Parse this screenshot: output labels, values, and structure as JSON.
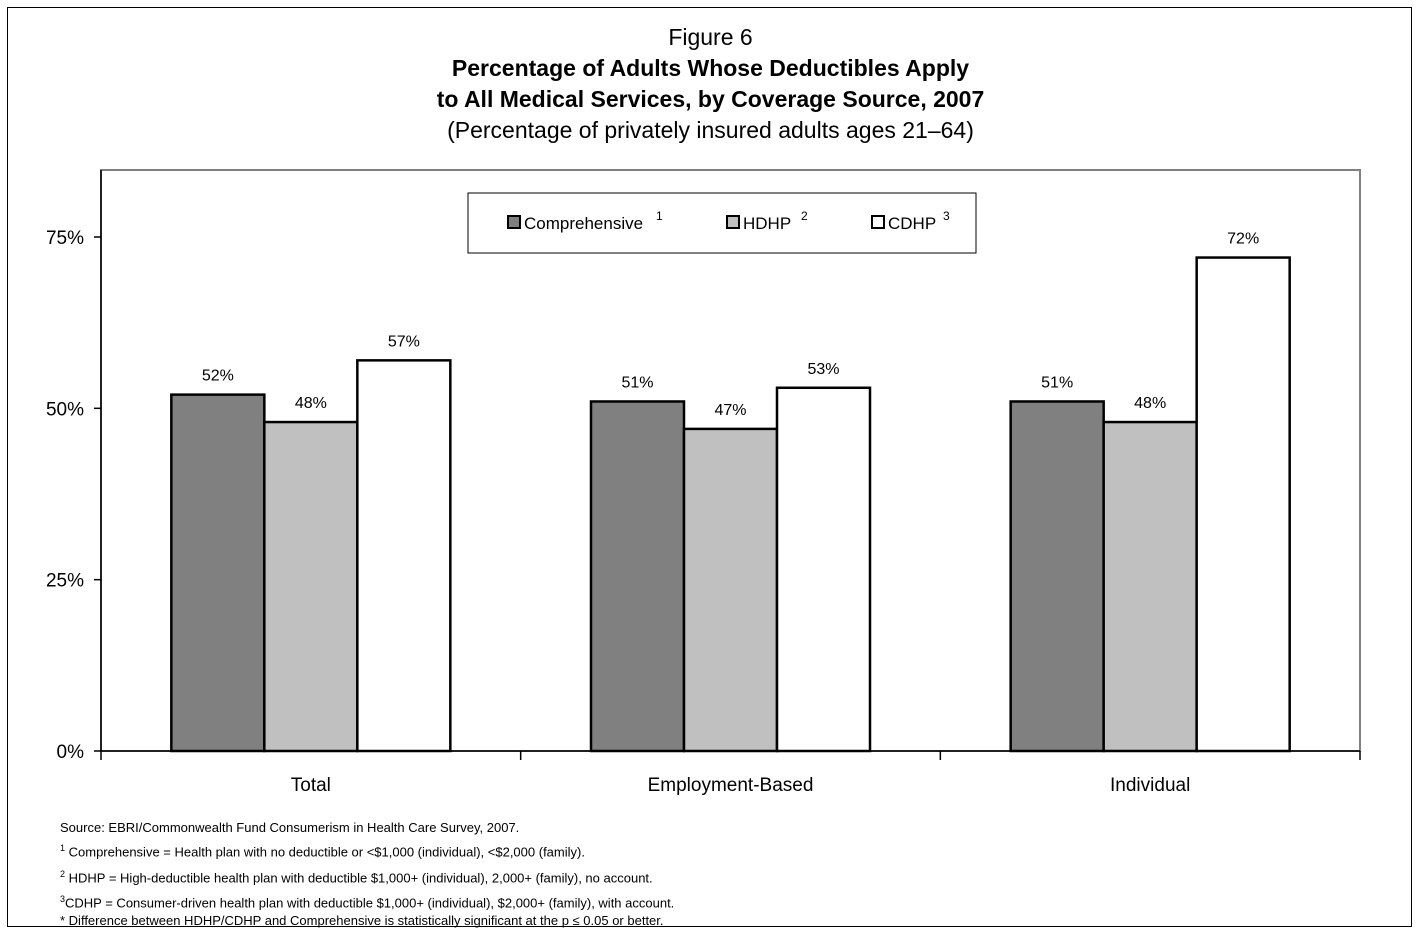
{
  "figure_label": "Figure 6",
  "title_line1": "Percentage of Adults Whose Deductibles Apply",
  "title_line2": "to All Medical Services, by Coverage Source, 2007",
  "subtitle": "(Percentage of privately insured adults ages 21–64)",
  "colors": {
    "comprehensive": "#808080",
    "hdhp": "#c0c0c0",
    "cdhp": "#ffffff",
    "plot_border": "#808080"
  },
  "chart_data": {
    "type": "bar",
    "categories": [
      "Total",
      "Employment-Based",
      "Individual"
    ],
    "series": [
      {
        "name": "Comprehensive",
        "superscript": "1",
        "values": [
          52,
          51,
          51
        ],
        "labels": [
          "52%",
          "51%",
          "51%"
        ]
      },
      {
        "name": "HDHP",
        "superscript": "2",
        "values": [
          48,
          47,
          48
        ],
        "labels": [
          "48%",
          "47%",
          "48%"
        ]
      },
      {
        "name": "CDHP",
        "superscript": "3",
        "values": [
          57,
          53,
          72
        ],
        "labels": [
          "57%",
          "53%",
          "72%"
        ]
      }
    ],
    "ylim": [
      0,
      75
    ],
    "yticks": [
      0,
      25,
      50,
      75
    ],
    "ytick_labels": [
      "0%",
      "25%",
      "50%",
      "75%"
    ],
    "grid": false,
    "legend_position": "top-center"
  },
  "footnotes": [
    {
      "sup": "",
      "text": "Source: EBRI/Commonwealth Fund Consumerism in Health Care Survey, 2007."
    },
    {
      "sup": "1",
      "text": " Comprehensive = Health plan with no deductible or <$1,000 (individual), <$2,000 (family)."
    },
    {
      "sup": "2",
      "text": " HDHP = High-deductible health plan with deductible $1,000+ (individual), 2,000+ (family), no account."
    },
    {
      "sup": "3",
      "text": "CDHP = Consumer-driven health plan with deductible $1,000+ (individual), $2,000+ (family), with account."
    },
    {
      "sup": "",
      "text": "* Difference between HDHP/CDHP and Comprehensive is statistically significant at the p ≤ 0.05 or better."
    }
  ]
}
